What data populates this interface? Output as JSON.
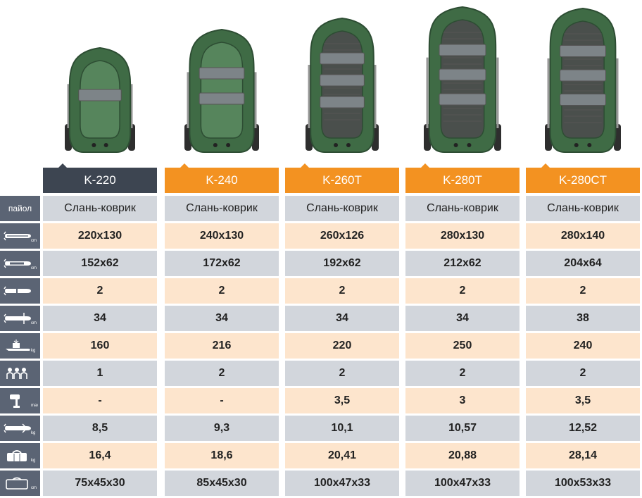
{
  "colors": {
    "header_dark": "#3d4551",
    "header_orange": "#f39221",
    "label_bg": "#5b6474",
    "row_grey": "#d2d6dc",
    "row_peach": "#fde5cd",
    "boat_green": "#3f6b45"
  },
  "row_labels": [
    {
      "text": "пайол",
      "icon": ""
    },
    {
      "text": "",
      "icon": "boat-length-width-icon",
      "unit": "cm"
    },
    {
      "text": "",
      "icon": "boat-inner-dimensions-icon",
      "unit": "cm"
    },
    {
      "text": "",
      "icon": "boat-chambers-icon",
      "unit": ""
    },
    {
      "text": "",
      "icon": "tube-diameter-icon",
      "unit": "cm"
    },
    {
      "text": "",
      "icon": "load-capacity-icon",
      "unit": "kg"
    },
    {
      "text": "",
      "icon": "passengers-icon",
      "unit": ""
    },
    {
      "text": "",
      "icon": "max-motor-icon",
      "unit": "max"
    },
    {
      "text": "",
      "icon": "boat-weight-icon",
      "unit": "kg"
    },
    {
      "text": "",
      "icon": "package-weight-icon",
      "unit": "kg"
    },
    {
      "text": "",
      "icon": "package-size-icon",
      "unit": "cm"
    }
  ],
  "models": [
    {
      "name": "K-220",
      "style": "dark",
      "values": [
        "Слань-коврик",
        "220x130",
        "152x62",
        "2",
        "34",
        "160",
        "1",
        "-",
        "8,5",
        "16,4",
        "75x45x30"
      ]
    },
    {
      "name": "K-240",
      "style": "orange",
      "values": [
        "Слань-коврик",
        "240x130",
        "172x62",
        "2",
        "34",
        "216",
        "2",
        "-",
        "9,3",
        "18,6",
        "85x45x30"
      ]
    },
    {
      "name": "K-260T",
      "style": "orange",
      "values": [
        "Слань-коврик",
        "260x126",
        "192x62",
        "2",
        "34",
        "220",
        "2",
        "3,5",
        "10,1",
        "20,41",
        "100x47x33"
      ]
    },
    {
      "name": "K-280T",
      "style": "orange",
      "values": [
        "Слань-коврик",
        "280x130",
        "212x62",
        "2",
        "34",
        "250",
        "2",
        "3",
        "10,57",
        "20,88",
        "100x47x33"
      ]
    },
    {
      "name": "K-280CT",
      "style": "orange",
      "values": [
        "Слань-коврик",
        "280x140",
        "204x64",
        "2",
        "38",
        "240",
        "2",
        "3,5",
        "12,52",
        "28,14",
        "100x53x33"
      ]
    }
  ]
}
